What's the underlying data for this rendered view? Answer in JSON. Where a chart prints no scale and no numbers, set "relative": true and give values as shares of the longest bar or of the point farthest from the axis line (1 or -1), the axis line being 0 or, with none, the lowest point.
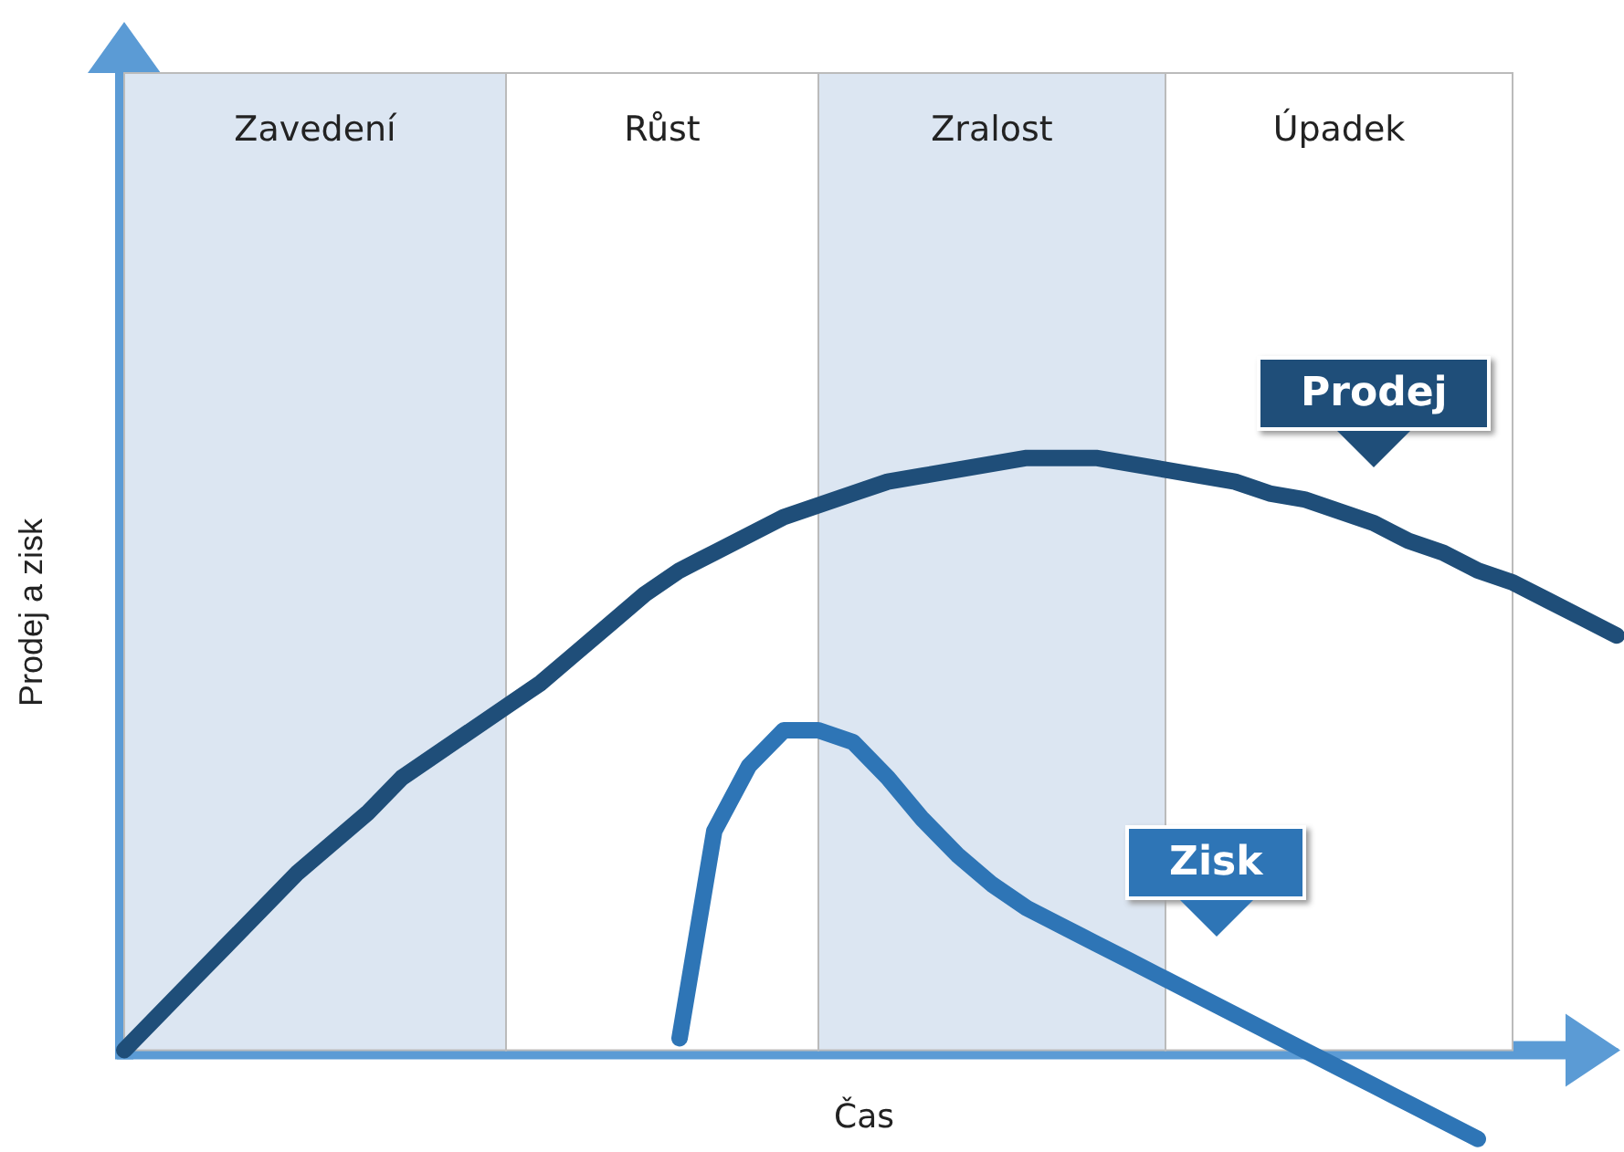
{
  "chart_data": {
    "type": "line",
    "relative": true,
    "xlabel": "Čas",
    "ylabel": "Prodej a zisk",
    "grid": false,
    "legend": false,
    "marker": "none",
    "line_style": "solid",
    "categories": [
      null,
      null,
      null,
      null,
      null,
      null,
      null,
      null,
      null,
      null,
      null,
      null,
      null,
      null,
      null,
      null,
      null,
      null,
      null,
      null,
      null,
      null,
      null,
      null,
      null,
      null,
      null,
      null,
      null,
      null,
      null,
      null,
      null,
      null,
      null,
      null,
      null,
      null,
      null,
      null,
      null,
      null,
      null,
      null
    ],
    "annotations": [
      "Zavedení",
      "Růst",
      "Zralost",
      "Úpadek"
    ],
    "series": [
      {
        "name": "Prodej",
        "color": "#1f4e79",
        "values": [
          0,
          0.06,
          0.12,
          0.18,
          0.24,
          0.3,
          0.35,
          0.4,
          0.46,
          0.5,
          0.54,
          0.58,
          0.62,
          0.67,
          0.72,
          0.77,
          0.81,
          0.84,
          0.87,
          0.9,
          0.92,
          0.94,
          0.96,
          0.97,
          0.98,
          0.99,
          1,
          1,
          1,
          0.99,
          0.98,
          0.97,
          0.96,
          0.94,
          0.93,
          0.91,
          0.89,
          0.86,
          0.84,
          0.81,
          0.79,
          0.76,
          0.73,
          0.7
        ]
      },
      {
        "name": "Zisk",
        "color": "#2e75b6",
        "values": [
          null,
          null,
          null,
          null,
          null,
          null,
          null,
          null,
          null,
          null,
          null,
          null,
          null,
          null,
          null,
          null,
          0.02,
          0.37,
          0.48,
          0.54,
          0.54,
          0.52,
          0.46,
          0.39,
          0.33,
          0.28,
          0.24,
          0.21,
          0.18,
          0.15,
          0.12,
          0.09,
          0.06,
          0.03,
          0,
          -0.03,
          -0.06,
          -0.09,
          -0.12,
          -0.15,
          null,
          null,
          null,
          null
        ]
      }
    ]
  }
}
